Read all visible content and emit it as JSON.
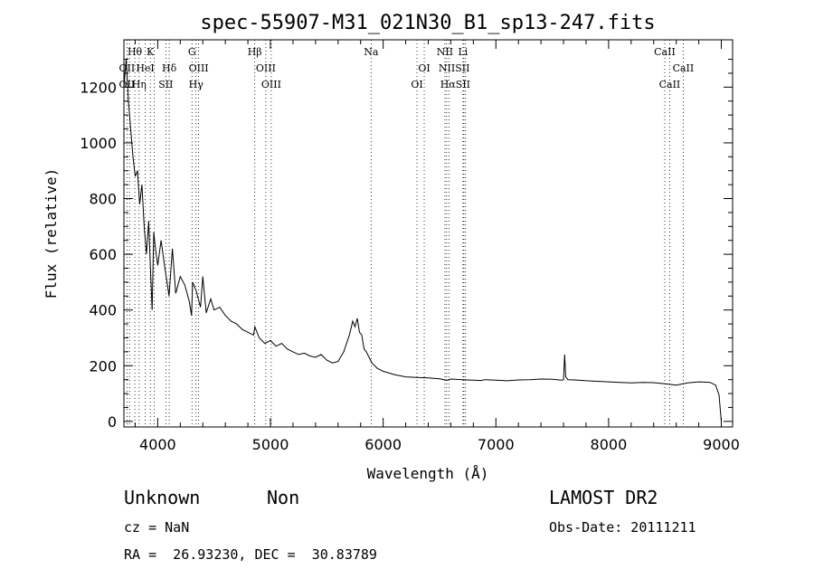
{
  "chart_data": {
    "type": "line",
    "title": "spec-55907-M31_021N30_B1_sp13-247.fits",
    "xlabel": "Wavelength (Å)",
    "ylabel": "Flux (relative)",
    "xlim": [
      3700,
      9100
    ],
    "ylim": [
      -20,
      1370
    ],
    "x_ticks": [
      4000,
      5000,
      6000,
      7000,
      8000,
      9000
    ],
    "y_ticks": [
      0,
      200,
      400,
      600,
      800,
      1000,
      1200
    ],
    "series": [
      {
        "x": [
          3700,
          3720,
          3740,
          3760,
          3780,
          3800,
          3820,
          3840,
          3860,
          3880,
          3900,
          3920,
          3935,
          3950,
          3965,
          3980,
          4000,
          4030,
          4060,
          4090,
          4100,
          4130,
          4160,
          4200,
          4240,
          4280,
          4300,
          4310,
          4340,
          4380,
          4400,
          4430,
          4470,
          4500,
          4550,
          4600,
          4650,
          4700,
          4750,
          4800,
          4850,
          4862,
          4900,
          4950,
          5000,
          5050,
          5100,
          5150,
          5200,
          5250,
          5300,
          5350,
          5400,
          5450,
          5500,
          5550,
          5600,
          5650,
          5700,
          5730,
          5750,
          5770,
          5790,
          5810,
          5830,
          5850,
          5875,
          5900,
          5950,
          6000,
          6100,
          6200,
          6300,
          6400,
          6500,
          6563,
          6600,
          6700,
          6800,
          6870,
          6900,
          7000,
          7100,
          7200,
          7300,
          7400,
          7500,
          7580,
          7600,
          7610,
          7620,
          7640,
          7700,
          7800,
          7900,
          8000,
          8100,
          8200,
          8300,
          8400,
          8500,
          8600,
          8700,
          8800,
          8900,
          8950,
          8980,
          9000
        ],
        "y": [
          1200,
          1300,
          1150,
          1050,
          950,
          880,
          900,
          780,
          850,
          700,
          600,
          720,
          550,
          400,
          680,
          620,
          560,
          650,
          560,
          480,
          450,
          620,
          460,
          520,
          490,
          430,
          380,
          500,
          470,
          410,
          520,
          390,
          440,
          400,
          410,
          380,
          360,
          350,
          330,
          320,
          310,
          340,
          300,
          280,
          290,
          270,
          280,
          260,
          250,
          240,
          245,
          235,
          230,
          240,
          220,
          210,
          215,
          250,
          310,
          360,
          340,
          370,
          320,
          310,
          260,
          250,
          230,
          210,
          190,
          180,
          168,
          160,
          158,
          156,
          153,
          148,
          152,
          150,
          148,
          147,
          150,
          148,
          146,
          149,
          150,
          152,
          151,
          148,
          150,
          240,
          160,
          150,
          149,
          146,
          144,
          142,
          140,
          138,
          140,
          139,
          135,
          130,
          138,
          142,
          140,
          130,
          95,
          0
        ]
      }
    ],
    "line_labels": [
      {
        "text": "Hθ",
        "x": 3797,
        "row": 0
      },
      {
        "text": "K",
        "x": 3934,
        "row": 0
      },
      {
        "text": "G",
        "x": 4304,
        "row": 0
      },
      {
        "text": "Hβ",
        "x": 4861,
        "row": 0
      },
      {
        "text": "Na",
        "x": 5893,
        "row": 0
      },
      {
        "text": "NII",
        "x": 6548,
        "row": 0
      },
      {
        "text": "Li",
        "x": 6708,
        "row": 0
      },
      {
        "text": "CaII",
        "x": 8498,
        "row": 0
      },
      {
        "text": "OII",
        "x": 3727,
        "row": 1
      },
      {
        "text": "HeI",
        "x": 3889,
        "row": 1
      },
      {
        "text": "Hδ",
        "x": 4102,
        "row": 1
      },
      {
        "text": "OIII",
        "x": 4363,
        "row": 1
      },
      {
        "text": "OIII",
        "x": 4959,
        "row": 1
      },
      {
        "text": "OI",
        "x": 6364,
        "row": 1
      },
      {
        "text": "NIISII",
        "x": 6630,
        "row": 1
      },
      {
        "text": "CaII",
        "x": 8662,
        "row": 1
      },
      {
        "text": "OII",
        "x": 3727,
        "row": 2
      },
      {
        "text": "Hη",
        "x": 3835,
        "row": 2
      },
      {
        "text": "SII",
        "x": 4072,
        "row": 2
      },
      {
        "text": "Hγ",
        "x": 4340,
        "row": 2
      },
      {
        "text": "OIII",
        "x": 5007,
        "row": 2
      },
      {
        "text": "OI",
        "x": 6300,
        "row": 2
      },
      {
        "text": "HαSII",
        "x": 6640,
        "row": 2
      },
      {
        "text": "CaII",
        "x": 8542,
        "row": 2
      }
    ],
    "line_marks": [
      3727,
      3750,
      3797,
      3835,
      3889,
      3934,
      3968,
      4072,
      4102,
      4304,
      4340,
      4363,
      4861,
      4959,
      5007,
      5893,
      6300,
      6364,
      6548,
      6563,
      6583,
      6708,
      6716,
      6731,
      8498,
      8542,
      8662
    ]
  },
  "footer": {
    "object_class": "Unknown",
    "subclass": "Non",
    "survey": "LAMOST DR2",
    "cz": "cz = NaN",
    "obs_date": "Obs-Date: 20111211",
    "coords": "RA =  26.93230, DEC =  30.83789"
  }
}
